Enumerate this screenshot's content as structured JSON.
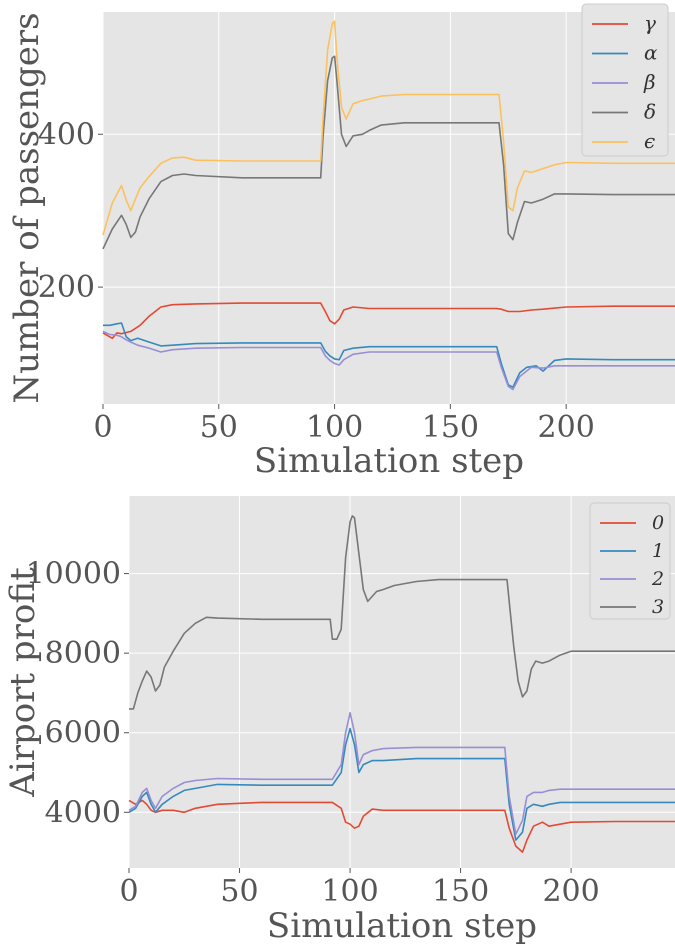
{
  "chart_data": [
    {
      "type": "line",
      "xlabel": "Simulation step",
      "ylabel": "Number of passengers",
      "xlim": [
        0,
        247
      ],
      "ylim": [
        47,
        560
      ],
      "xticks": [
        0,
        50,
        100,
        150,
        200
      ],
      "yticks": [
        200,
        400
      ],
      "grid": true,
      "legend_position": "top-right",
      "series": [
        {
          "name": "γ",
          "color": "#E24A33",
          "x": [
            0,
            4,
            6,
            8,
            12,
            16,
            20,
            25,
            30,
            40,
            60,
            80,
            94,
            96,
            98,
            100,
            102,
            104,
            108,
            115,
            130,
            150,
            170,
            172,
            175,
            180,
            185,
            190,
            200,
            220,
            247
          ],
          "y": [
            140,
            133,
            140,
            139,
            142,
            150,
            162,
            174,
            177,
            178,
            179,
            179,
            179,
            168,
            156,
            152,
            158,
            170,
            174,
            172,
            172,
            172,
            172,
            171,
            168,
            168,
            170,
            171,
            174,
            175,
            175
          ]
        },
        {
          "name": "α",
          "color": "#348ABD",
          "x": [
            0,
            3,
            6,
            8,
            10,
            12,
            15,
            20,
            25,
            30,
            40,
            60,
            80,
            94,
            96,
            98,
            100,
            102,
            104,
            108,
            115,
            130,
            150,
            170,
            172,
            175,
            177,
            180,
            183,
            187,
            190,
            195,
            200,
            220,
            247
          ],
          "y": [
            150,
            150,
            152,
            153,
            135,
            130,
            133,
            128,
            123,
            124,
            126,
            127,
            127,
            127,
            116,
            110,
            106,
            105,
            117,
            120,
            122,
            122,
            122,
            122,
            100,
            72,
            69,
            88,
            95,
            97,
            90,
            104,
            106,
            105,
            105
          ]
        },
        {
          "name": "β",
          "color": "#988ED5",
          "x": [
            0,
            3,
            6,
            8,
            10,
            12,
            15,
            20,
            25,
            30,
            40,
            60,
            80,
            94,
            96,
            98,
            100,
            102,
            104,
            108,
            115,
            130,
            150,
            170,
            172,
            175,
            177,
            180,
            185,
            190,
            195,
            200,
            220,
            247
          ],
          "y": [
            142,
            138,
            137,
            135,
            131,
            128,
            124,
            120,
            115,
            118,
            120,
            121,
            121,
            121,
            110,
            104,
            100,
            98,
            105,
            112,
            115,
            115,
            115,
            115,
            95,
            70,
            66,
            83,
            95,
            94,
            97,
            97,
            97,
            97
          ]
        },
        {
          "name": "δ",
          "color": "#777777",
          "x": [
            0,
            4,
            8,
            10,
            12,
            14,
            16,
            20,
            25,
            30,
            35,
            40,
            60,
            80,
            94,
            95,
            97,
            99,
            100,
            101,
            103,
            105,
            108,
            112,
            115,
            120,
            130,
            140,
            150,
            160,
            171,
            173,
            175,
            177,
            179,
            182,
            185,
            190,
            195,
            200,
            220,
            247
          ],
          "y": [
            250,
            276,
            294,
            282,
            265,
            272,
            292,
            316,
            338,
            346,
            348,
            346,
            343,
            343,
            343,
            396,
            470,
            500,
            502,
            470,
            400,
            384,
            398,
            400,
            405,
            412,
            415,
            415,
            415,
            415,
            415,
            360,
            270,
            262,
            285,
            312,
            310,
            315,
            322,
            322,
            321,
            321
          ]
        },
        {
          "name": "ϵ",
          "color": "#FBC15E",
          "x": [
            0,
            4,
            8,
            10,
            12,
            14,
            16,
            20,
            25,
            30,
            35,
            40,
            60,
            80,
            94,
            95,
            97,
            99,
            100,
            101,
            103,
            105,
            108,
            112,
            115,
            120,
            130,
            140,
            150,
            160,
            171,
            173,
            175,
            177,
            179,
            182,
            185,
            190,
            195,
            200,
            220,
            247
          ],
          "y": [
            268,
            310,
            333,
            314,
            300,
            315,
            330,
            345,
            362,
            369,
            370,
            366,
            365,
            365,
            365,
            420,
            510,
            545,
            548,
            500,
            435,
            420,
            440,
            444,
            446,
            450,
            452,
            452,
            452,
            452,
            452,
            390,
            305,
            300,
            330,
            352,
            350,
            355,
            360,
            363,
            362,
            362
          ]
        }
      ]
    },
    {
      "type": "line",
      "xlabel": "Simulation step",
      "ylabel": "Airport profit",
      "xlim": [
        0,
        247
      ],
      "ylim": [
        2600,
        11950
      ],
      "xticks": [
        0,
        50,
        100,
        150,
        200
      ],
      "yticks": [
        4000,
        6000,
        8000,
        10000
      ],
      "grid": true,
      "legend_position": "top-right",
      "series": [
        {
          "name": "0",
          "color": "#E24A33",
          "x": [
            0,
            3,
            6,
            8,
            10,
            12,
            15,
            20,
            25,
            30,
            40,
            60,
            80,
            92,
            96,
            98,
            100,
            102,
            104,
            106,
            110,
            115,
            130,
            150,
            170,
            172,
            175,
            178,
            180,
            183,
            187,
            190,
            195,
            200,
            220,
            247
          ],
          "y": [
            4300,
            4200,
            4300,
            4200,
            4050,
            4000,
            4050,
            4050,
            4000,
            4100,
            4200,
            4250,
            4250,
            4250,
            4100,
            3750,
            3700,
            3600,
            3650,
            3900,
            4080,
            4050,
            4050,
            4050,
            4050,
            3600,
            3150,
            3000,
            3300,
            3650,
            3750,
            3650,
            3700,
            3750,
            3770,
            3770
          ]
        },
        {
          "name": "1",
          "color": "#348ABD",
          "x": [
            0,
            3,
            6,
            8,
            10,
            12,
            15,
            20,
            25,
            30,
            40,
            60,
            80,
            92,
            96,
            98,
            100,
            102,
            104,
            106,
            110,
            115,
            130,
            150,
            170,
            172,
            175,
            178,
            180,
            183,
            187,
            190,
            195,
            200,
            220,
            247
          ],
          "y": [
            4000,
            4100,
            4400,
            4500,
            4200,
            4000,
            4200,
            4400,
            4550,
            4600,
            4700,
            4680,
            4680,
            4680,
            5000,
            5700,
            6100,
            5700,
            5000,
            5200,
            5300,
            5300,
            5350,
            5350,
            5350,
            4200,
            3300,
            3500,
            4100,
            4200,
            4150,
            4200,
            4250,
            4250,
            4250,
            4250
          ]
        },
        {
          "name": "2",
          "color": "#988ED5",
          "x": [
            0,
            3,
            6,
            8,
            10,
            12,
            15,
            20,
            25,
            30,
            40,
            60,
            80,
            92,
            96,
            98,
            100,
            102,
            104,
            106,
            110,
            115,
            130,
            150,
            170,
            172,
            175,
            178,
            180,
            183,
            187,
            190,
            195,
            200,
            220,
            247
          ],
          "y": [
            4050,
            4150,
            4500,
            4600,
            4300,
            4100,
            4400,
            4600,
            4750,
            4800,
            4850,
            4830,
            4830,
            4830,
            5200,
            6000,
            6500,
            6000,
            5200,
            5450,
            5550,
            5600,
            5630,
            5630,
            5630,
            4400,
            3450,
            3800,
            4400,
            4500,
            4500,
            4550,
            4580,
            4580,
            4580,
            4580
          ]
        },
        {
          "name": "3",
          "color": "#777777",
          "x": [
            0,
            2,
            4,
            6,
            8,
            10,
            12,
            14,
            16,
            20,
            25,
            30,
            35,
            40,
            60,
            80,
            91,
            92,
            94,
            96,
            98,
            100,
            101,
            102,
            104,
            106,
            108,
            112,
            115,
            120,
            130,
            140,
            150,
            160,
            164,
            170,
            171,
            172,
            174,
            176,
            178,
            180,
            182,
            184,
            187,
            190,
            195,
            200,
            220,
            247
          ],
          "y": [
            6600,
            6600,
            7000,
            7300,
            7550,
            7400,
            7050,
            7200,
            7650,
            8050,
            8500,
            8750,
            8900,
            8880,
            8850,
            8850,
            8850,
            8350,
            8350,
            8600,
            10400,
            11300,
            11450,
            11400,
            10500,
            9600,
            9300,
            9550,
            9600,
            9700,
            9800,
            9850,
            9850,
            9850,
            9850,
            9850,
            9850,
            9300,
            8200,
            7300,
            6900,
            7050,
            7600,
            7800,
            7750,
            7800,
            7950,
            8050,
            8050,
            8050
          ]
        }
      ]
    }
  ]
}
